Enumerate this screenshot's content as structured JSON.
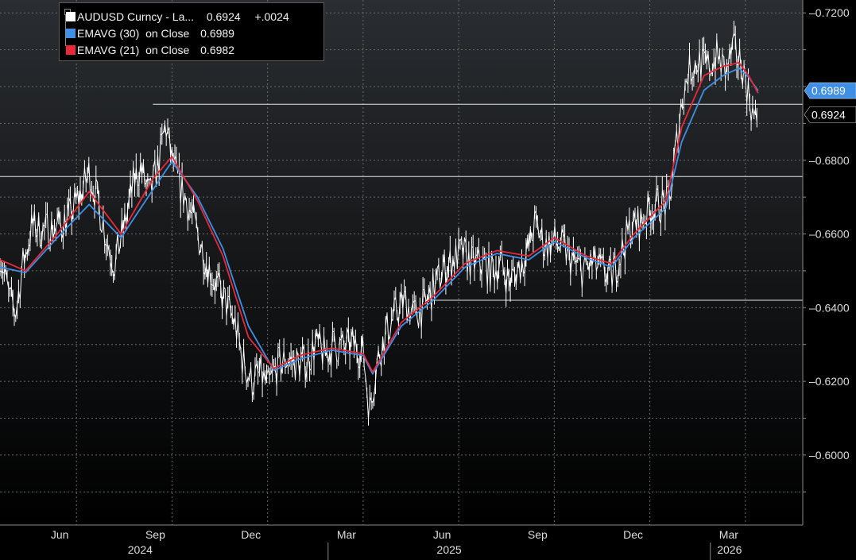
{
  "legend": {
    "items": [
      {
        "label": "AUDUSD Curncy - La...",
        "value": "0.6924",
        "change": "+.0024",
        "color": "#ffffff"
      },
      {
        "label": "EMAVG (30)  on Close",
        "value": "0.6989",
        "change": "",
        "color": "#3f8fe6"
      },
      {
        "label": "EMAVG (21)  on Close",
        "value": "0.6982",
        "change": "",
        "color": "#e8293a"
      }
    ]
  },
  "chart_data": {
    "type": "line",
    "y_ticks": [
      "0.6000",
      "0.6200",
      "0.6400",
      "0.6600",
      "0.6800",
      "0.7200"
    ],
    "ylim": [
      0.581,
      0.7235
    ],
    "x_month_labels": [
      "Jun",
      "Sep",
      "Dec",
      "Mar",
      "Jun",
      "Sep",
      "Dec",
      "Mar"
    ],
    "x_year_labels": [
      "2024",
      "2025",
      "2026"
    ],
    "x_tick_times": [
      3,
      6,
      9,
      12,
      15,
      18,
      21,
      24
    ],
    "year_label_times": [
      5,
      14.7,
      23.5
    ],
    "year_divider_times": [
      10.9,
      22.9
    ],
    "xlim": [
      0.6,
      25.8
    ],
    "last_price_label": "0.6924",
    "ema30_label": "0.6989",
    "horizontal_lines": [
      {
        "value": 0.6952,
        "from_time": 5.4
      },
      {
        "value": 0.6756,
        "from_time": 0.6
      },
      {
        "value": 0.642,
        "from_time": 14.2
      }
    ],
    "series": [
      {
        "name": "AUDUSD Curncy - La...",
        "color": "#ffffff",
        "points": [
          [
            0.6,
            0.655
          ],
          [
            0.9,
            0.642
          ],
          [
            1.1,
            0.639
          ],
          [
            1.3,
            0.651
          ],
          [
            1.6,
            0.662
          ],
          [
            2.0,
            0.661
          ],
          [
            2.4,
            0.662
          ],
          [
            2.8,
            0.665
          ],
          [
            3.2,
            0.672
          ],
          [
            3.4,
            0.677
          ],
          [
            3.7,
            0.668
          ],
          [
            4.0,
            0.657
          ],
          [
            4.2,
            0.652
          ],
          [
            4.5,
            0.662
          ],
          [
            4.8,
            0.674
          ],
          [
            5.0,
            0.678
          ],
          [
            5.3,
            0.67
          ],
          [
            5.6,
            0.68
          ],
          [
            5.8,
            0.69
          ],
          [
            6.0,
            0.68
          ],
          [
            6.2,
            0.674
          ],
          [
            6.5,
            0.668
          ],
          [
            6.8,
            0.66
          ],
          [
            7.1,
            0.652
          ],
          [
            7.4,
            0.646
          ],
          [
            7.7,
            0.641
          ],
          [
            8.0,
            0.635
          ],
          [
            8.2,
            0.626
          ],
          [
            8.5,
            0.62
          ],
          [
            8.8,
            0.622
          ],
          [
            9.0,
            0.618
          ],
          [
            9.3,
            0.624
          ],
          [
            9.6,
            0.626
          ],
          [
            9.9,
            0.625
          ],
          [
            10.2,
            0.625
          ],
          [
            10.5,
            0.63
          ],
          [
            10.8,
            0.627
          ],
          [
            11.1,
            0.63
          ],
          [
            11.4,
            0.629
          ],
          [
            11.7,
            0.63
          ],
          [
            12.0,
            0.628
          ],
          [
            12.2,
            0.612
          ],
          [
            12.4,
            0.624
          ],
          [
            12.7,
            0.633
          ],
          [
            13.0,
            0.638
          ],
          [
            13.3,
            0.642
          ],
          [
            13.6,
            0.638
          ],
          [
            13.9,
            0.64
          ],
          [
            14.2,
            0.645
          ],
          [
            14.5,
            0.65
          ],
          [
            14.8,
            0.653
          ],
          [
            15.1,
            0.655
          ],
          [
            15.4,
            0.652
          ],
          [
            15.7,
            0.652
          ],
          [
            16.0,
            0.65
          ],
          [
            16.3,
            0.652
          ],
          [
            16.6,
            0.647
          ],
          [
            16.9,
            0.651
          ],
          [
            17.2,
            0.656
          ],
          [
            17.4,
            0.663
          ],
          [
            17.7,
            0.657
          ],
          [
            18.0,
            0.658
          ],
          [
            18.3,
            0.656
          ],
          [
            18.6,
            0.652
          ],
          [
            18.9,
            0.65
          ],
          [
            19.2,
            0.652
          ],
          [
            19.5,
            0.65
          ],
          [
            19.8,
            0.648
          ],
          [
            20.1,
            0.655
          ],
          [
            20.4,
            0.662
          ],
          [
            20.7,
            0.663
          ],
          [
            21.0,
            0.667
          ],
          [
            21.3,
            0.668
          ],
          [
            21.6,
            0.668
          ],
          [
            21.8,
            0.682
          ],
          [
            22.0,
            0.696
          ],
          [
            22.2,
            0.704
          ],
          [
            22.5,
            0.707
          ],
          [
            22.8,
            0.705
          ],
          [
            23.1,
            0.708
          ],
          [
            23.4,
            0.704
          ],
          [
            23.6,
            0.71
          ],
          [
            23.9,
            0.706
          ],
          [
            24.1,
            0.698
          ],
          [
            24.3,
            0.69
          ],
          [
            24.4,
            0.6924
          ]
        ]
      },
      {
        "name": "EMAVG (30)  on Close",
        "color": "#3f8fe6",
        "points": [
          [
            0.6,
            0.651
          ],
          [
            1.4,
            0.6495
          ],
          [
            2.4,
            0.659
          ],
          [
            3.4,
            0.668
          ],
          [
            4.4,
            0.659
          ],
          [
            5.4,
            0.672
          ],
          [
            6.0,
            0.6797
          ],
          [
            6.8,
            0.67
          ],
          [
            7.6,
            0.656
          ],
          [
            8.4,
            0.635
          ],
          [
            9.2,
            0.623
          ],
          [
            10.0,
            0.626
          ],
          [
            11.0,
            0.6285
          ],
          [
            12.0,
            0.627
          ],
          [
            12.3,
            0.622
          ],
          [
            13.2,
            0.635
          ],
          [
            14.2,
            0.642
          ],
          [
            15.2,
            0.651
          ],
          [
            16.2,
            0.6547
          ],
          [
            17.2,
            0.653
          ],
          [
            18.0,
            0.658
          ],
          [
            19.0,
            0.6535
          ],
          [
            19.8,
            0.651
          ],
          [
            20.5,
            0.659
          ],
          [
            21.5,
            0.667
          ],
          [
            22.0,
            0.685
          ],
          [
            22.7,
            0.699
          ],
          [
            23.3,
            0.703
          ],
          [
            23.8,
            0.705
          ],
          [
            24.1,
            0.7025
          ],
          [
            24.4,
            0.6989
          ]
        ]
      },
      {
        "name": "EMAVG (21)  on Close",
        "color": "#e8293a",
        "points": [
          [
            0.6,
            0.653
          ],
          [
            1.4,
            0.65
          ],
          [
            2.4,
            0.66
          ],
          [
            3.4,
            0.6715
          ],
          [
            4.4,
            0.66
          ],
          [
            5.4,
            0.675
          ],
          [
            6.0,
            0.681
          ],
          [
            6.8,
            0.669
          ],
          [
            7.6,
            0.654
          ],
          [
            8.4,
            0.632
          ],
          [
            9.2,
            0.6235
          ],
          [
            10.0,
            0.627
          ],
          [
            11.0,
            0.629
          ],
          [
            12.0,
            0.6275
          ],
          [
            12.3,
            0.6225
          ],
          [
            13.2,
            0.636
          ],
          [
            14.2,
            0.643
          ],
          [
            15.2,
            0.652
          ],
          [
            16.2,
            0.6555
          ],
          [
            17.2,
            0.654
          ],
          [
            18.0,
            0.659
          ],
          [
            19.0,
            0.654
          ],
          [
            19.8,
            0.652
          ],
          [
            20.5,
            0.66
          ],
          [
            21.5,
            0.669
          ],
          [
            22.0,
            0.689
          ],
          [
            22.7,
            0.703
          ],
          [
            23.3,
            0.7055
          ],
          [
            23.8,
            0.7065
          ],
          [
            24.1,
            0.703
          ],
          [
            24.4,
            0.6982
          ]
        ]
      }
    ]
  }
}
